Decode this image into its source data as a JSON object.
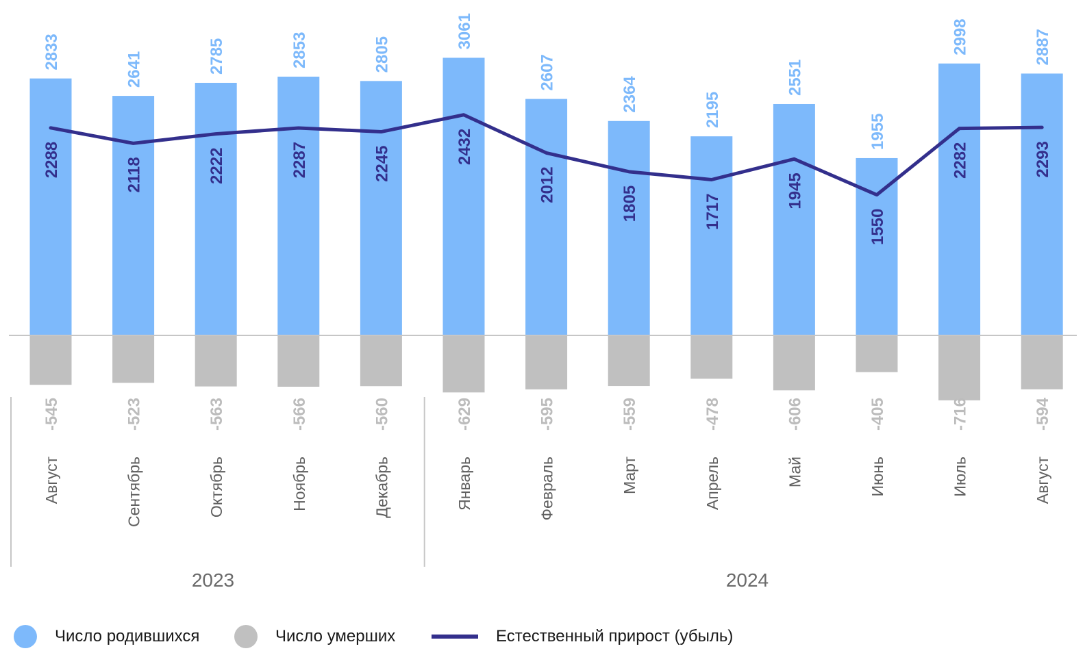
{
  "chart_data": {
    "type": "bar",
    "categories": [
      "Август",
      "Сентябрь",
      "Октябрь",
      "Ноябрь",
      "Декабрь",
      "Январь",
      "Февраль",
      "Март",
      "Апрель",
      "Май",
      "Июнь",
      "Июль",
      "Август"
    ],
    "groups": [
      {
        "label": "2023",
        "count": 5
      },
      {
        "label": "2024",
        "count": 8
      }
    ],
    "series": [
      {
        "name": "Число родившихся",
        "type": "bar",
        "color": "#7db9fb",
        "label_color": "#7db9fb",
        "values": [
          2833,
          2641,
          2785,
          2853,
          2805,
          3061,
          2607,
          2364,
          2195,
          2551,
          1955,
          2998,
          2887
        ]
      },
      {
        "name": "Число умерших",
        "type": "bar",
        "color": "#c0c0c0",
        "label_color": "#bcbcbc",
        "values": [
          -545,
          -523,
          -563,
          -566,
          -560,
          -629,
          -595,
          -559,
          -478,
          -606,
          -405,
          -716,
          -594
        ]
      },
      {
        "name": "Естественный  прирост (убыль)",
        "type": "line",
        "color": "#332f8c",
        "label_color": "#332f8c",
        "values": [
          2288,
          2118,
          2222,
          2287,
          2245,
          2432,
          2012,
          1805,
          1717,
          1945,
          1550,
          2282,
          2293
        ]
      }
    ],
    "legend": "bottom-left",
    "grid": false
  }
}
